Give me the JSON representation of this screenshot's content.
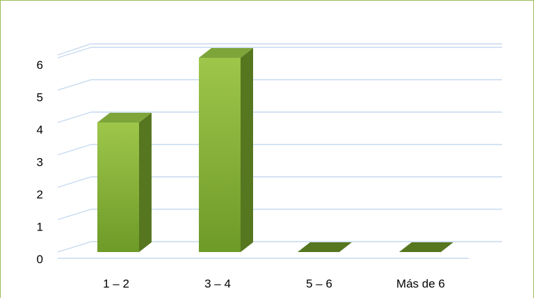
{
  "chart_data": {
    "type": "bar",
    "categories": [
      "1 – 2",
      "3 – 4",
      "5 – 6",
      "Más de 6"
    ],
    "values": [
      4,
      6,
      0,
      0
    ],
    "ylim": [
      0,
      6
    ],
    "yticks": [
      0,
      1,
      2,
      3,
      4,
      5,
      6
    ],
    "grid": true,
    "legend": "none",
    "three_d": true,
    "colors": {
      "bar_front_top": "#9dc64a",
      "bar_front_bottom": "#6e9a28",
      "bar_side": "#56761f",
      "bar_top": "#7ea53a",
      "gridline": "#c5d9ee",
      "frame": "#9bbb59"
    }
  }
}
